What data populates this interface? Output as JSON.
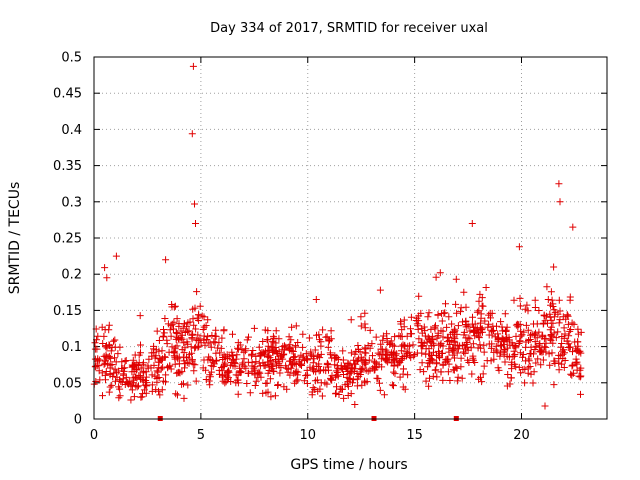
{
  "chart_data": {
    "type": "scatter",
    "title": "Day 334 of 2017, SRMTID for receiver uxal",
    "xlabel": "GPS time / hours",
    "ylabel": "SRMTID / TECUs",
    "xlim": [
      0,
      24
    ],
    "ylim": [
      0,
      0.5
    ],
    "grid": true,
    "legend": "none",
    "marker": "plus",
    "color": "#e00000",
    "x_ticks": [
      0,
      5,
      10,
      15,
      20
    ],
    "x_tick_labels": [
      "0",
      "5",
      "10",
      "15",
      "20"
    ],
    "y_ticks": [
      0,
      0.05,
      0.1,
      0.15,
      0.2,
      0.25,
      0.3,
      0.35,
      0.4,
      0.45,
      0.5
    ],
    "y_tick_labels": [
      "0",
      "0.05",
      "0.1",
      "0.15",
      "0.2",
      "0.25",
      "0.3",
      "0.35",
      "0.4",
      "0.45",
      "0.5"
    ],
    "highlight_points": [
      {
        "x": 4.65,
        "y": 0.487
      },
      {
        "x": 4.6,
        "y": 0.394
      },
      {
        "x": 21.75,
        "y": 0.325
      },
      {
        "x": 21.8,
        "y": 0.3
      },
      {
        "x": 4.7,
        "y": 0.297
      },
      {
        "x": 4.75,
        "y": 0.27
      },
      {
        "x": 17.7,
        "y": 0.27
      },
      {
        "x": 22.4,
        "y": 0.265
      },
      {
        "x": 19.9,
        "y": 0.238
      },
      {
        "x": 1.05,
        "y": 0.225
      },
      {
        "x": 3.35,
        "y": 0.22
      },
      {
        "x": 0.6,
        "y": 0.195
      },
      {
        "x": 16.2,
        "y": 0.202
      },
      {
        "x": 21.5,
        "y": 0.21
      },
      {
        "x": 4.8,
        "y": 0.176
      },
      {
        "x": 10.4,
        "y": 0.165
      },
      {
        "x": 13.4,
        "y": 0.178
      },
      {
        "x": 17.3,
        "y": 0.175
      },
      {
        "x": 12.2,
        "y": 0.02
      },
      {
        "x": 21.1,
        "y": 0.018
      },
      {
        "x": 11.3,
        "y": 0.035
      }
    ],
    "zero_markers": [
      {
        "x": 3.1,
        "y": 0
      },
      {
        "x": 13.1,
        "y": 0
      },
      {
        "x": 16.95,
        "y": 0
      }
    ],
    "baseline": {
      "x": [
        0,
        0.5,
        1,
        1.5,
        2,
        2.5,
        3,
        3.5,
        4,
        4.5,
        5,
        5.5,
        6,
        6.5,
        7,
        7.5,
        8,
        8.5,
        9,
        9.5,
        10,
        10.5,
        11,
        11.5,
        12,
        12.5,
        13,
        13.5,
        14,
        14.5,
        15,
        15.5,
        16,
        16.5,
        17,
        17.5,
        18,
        18.5,
        19,
        19.5,
        20,
        20.5,
        21,
        21.5,
        22,
        22.5,
        22.8
      ],
      "y": [
        0.07,
        0.09,
        0.065,
        0.06,
        0.065,
        0.06,
        0.075,
        0.09,
        0.095,
        0.1,
        0.11,
        0.085,
        0.085,
        0.075,
        0.07,
        0.07,
        0.075,
        0.08,
        0.08,
        0.075,
        0.075,
        0.08,
        0.08,
        0.065,
        0.065,
        0.075,
        0.08,
        0.08,
        0.085,
        0.095,
        0.11,
        0.1,
        0.1,
        0.095,
        0.105,
        0.11,
        0.12,
        0.11,
        0.1,
        0.085,
        0.1,
        0.11,
        0.115,
        0.115,
        0.1,
        0.095,
        0.09
      ]
    },
    "spread": {
      "x": [
        0,
        0.5,
        1,
        1.5,
        2,
        2.5,
        3,
        3.5,
        4,
        4.5,
        5,
        5.5,
        6,
        6.5,
        7,
        7.5,
        8,
        8.5,
        9,
        9.5,
        10,
        10.5,
        11,
        11.5,
        12,
        12.5,
        13,
        13.5,
        14,
        14.5,
        15,
        15.5,
        16,
        16.5,
        17,
        17.5,
        18,
        18.5,
        19,
        19.5,
        20,
        20.5,
        21,
        21.5,
        22,
        22.5,
        22.8
      ],
      "y": [
        0.025,
        0.04,
        0.035,
        0.025,
        0.025,
        0.025,
        0.035,
        0.045,
        0.04,
        0.045,
        0.045,
        0.035,
        0.035,
        0.03,
        0.03,
        0.03,
        0.035,
        0.035,
        0.035,
        0.03,
        0.035,
        0.035,
        0.035,
        0.03,
        0.03,
        0.035,
        0.04,
        0.035,
        0.035,
        0.04,
        0.04,
        0.035,
        0.04,
        0.04,
        0.04,
        0.045,
        0.045,
        0.04,
        0.035,
        0.035,
        0.05,
        0.045,
        0.05,
        0.05,
        0.045,
        0.04,
        0.035
      ]
    },
    "sample_count": 1400,
    "x_sampling_range": [
      0,
      22.8
    ]
  }
}
